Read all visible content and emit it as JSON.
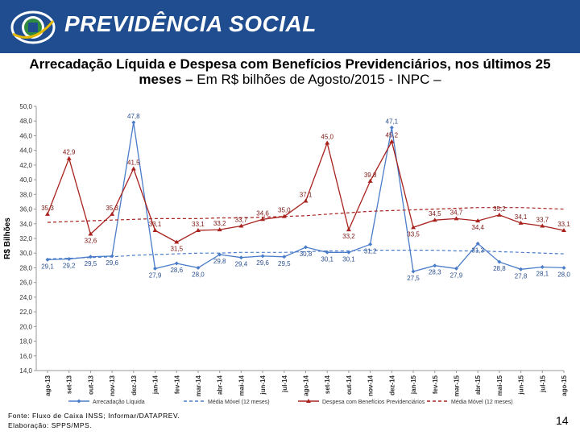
{
  "header": {
    "brand": "PREVIDÊNCIA SOCIAL"
  },
  "title": {
    "bold": "Arrecadação Líquida e Despesa com Benefícios Previdenciários, nos últimos 25 meses –",
    "normal": " Em R$ bilhões de Agosto/2015 - INPC –"
  },
  "footer": {
    "source": "Fonte: Fluxo de Caixa INSS; Informar/DATAPREV.",
    "elaboration": "Elaboração: SPPS/MPS."
  },
  "page_number": "14",
  "colors": {
    "header_bg": "#1f4d8f",
    "revenue": "#4a7cc9",
    "expense": "#a8221e"
  },
  "chart_data": {
    "type": "line",
    "ylabel": "R$ Bilhões",
    "ylim": [
      14,
      50
    ],
    "yticks": [
      "14,0",
      "16,0",
      "18,0",
      "20,0",
      "22,0",
      "24,0",
      "26,0",
      "28,0",
      "30,0",
      "32,0",
      "34,0",
      "36,0",
      "38,0",
      "40,0",
      "42,0",
      "44,0",
      "46,0",
      "48,0",
      "50,0"
    ],
    "categories": [
      "ago-13",
      "set-13",
      "out-13",
      "nov-13",
      "dez-13",
      "jan-14",
      "fev-14",
      "mar-14",
      "abr-14",
      "mai-14",
      "jun-14",
      "jul-14",
      "ago-14",
      "set-14",
      "out-14",
      "nov-14",
      "dez-14",
      "jan-15",
      "fev-15",
      "mar-15",
      "abr-15",
      "mai-15",
      "jun-15",
      "jul-15",
      "ago-15"
    ],
    "series": [
      {
        "name": "Arrecadação Líquida",
        "values": [
          29.1,
          29.2,
          29.5,
          29.6,
          47.8,
          27.9,
          28.6,
          28.0,
          29.8,
          29.4,
          29.6,
          29.5,
          30.8,
          30.1,
          30.1,
          31.2,
          47.1,
          27.5,
          28.3,
          27.9,
          31.3,
          28.8,
          27.8,
          28.1,
          28.0
        ],
        "labels": [
          "29,1",
          "29,2",
          "29,5",
          "29,6",
          "47,8",
          "27,9",
          "28,6",
          "28,0",
          "29,8",
          "29,4",
          "29,6",
          "29,5",
          "30,8",
          "30,1",
          "30,1",
          "31,2",
          "47,1",
          "27,5",
          "28,3",
          "27,9",
          "31,3",
          "28,8",
          "27,8",
          "28,1",
          "28,0"
        ]
      },
      {
        "name": "Média Móvel (12 meses)",
        "values": [
          29.2,
          29.3,
          29.4,
          29.5,
          29.7,
          29.8,
          29.9,
          30.0,
          30.0,
          30.1,
          30.1,
          30.1,
          30.2,
          30.3,
          30.3,
          30.4,
          30.4,
          30.4,
          30.4,
          30.3,
          30.3,
          30.2,
          30.1,
          30.0,
          29.9
        ]
      },
      {
        "name": "Despesa com Benefícios Previdenciários",
        "values": [
          35.3,
          42.9,
          32.6,
          35.3,
          41.5,
          33.1,
          31.5,
          33.1,
          33.2,
          33.7,
          34.6,
          35.0,
          37.1,
          45.0,
          33.2,
          39.8,
          45.2,
          33.5,
          34.5,
          34.7,
          34.4,
          35.2,
          34.1,
          33.7,
          33.1
        ],
        "labels": [
          "35,3",
          "42,9",
          "32,6",
          "35,3",
          "41,5",
          "33,1",
          "31,5",
          "33,1",
          "33,2",
          "33,7",
          "34,6",
          "35,0",
          "37,1",
          "45,0",
          "33,2",
          "39,8",
          "45,2",
          "33,5",
          "34,5",
          "34,7",
          "34,4",
          "35,2",
          "34,1",
          "33,7",
          "33,1"
        ]
      },
      {
        "name": "Média Móvel (12 meses)",
        "values": [
          34.2,
          34.3,
          34.4,
          34.5,
          34.6,
          34.7,
          34.7,
          34.7,
          34.8,
          34.8,
          34.9,
          35.0,
          35.1,
          35.3,
          35.5,
          35.7,
          35.8,
          35.9,
          36.0,
          36.1,
          36.2,
          36.2,
          36.2,
          36.1,
          36.0
        ]
      }
    ]
  }
}
